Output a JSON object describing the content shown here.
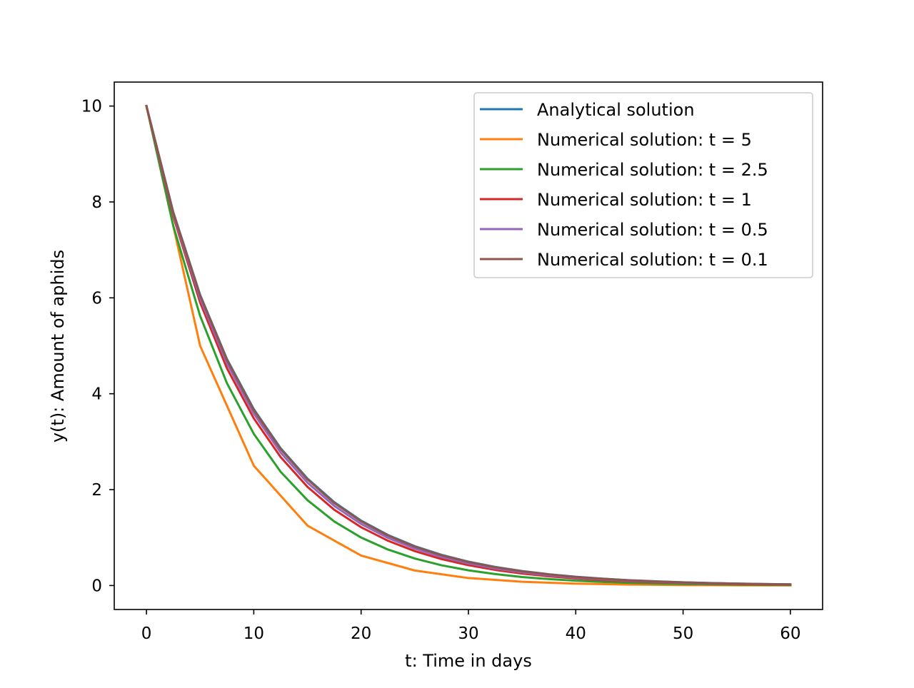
{
  "chart_data": {
    "type": "line",
    "title": "",
    "xlabel": "t: Time in days",
    "ylabel": "y(t): Amount of aphids",
    "xlim": [
      -3,
      63
    ],
    "ylim": [
      -0.5,
      10.5
    ],
    "xticks": [
      0,
      10,
      20,
      30,
      40,
      50,
      60
    ],
    "yticks": [
      0,
      2,
      4,
      6,
      8,
      10
    ],
    "grid": false,
    "legend_position": "top-right",
    "series": [
      {
        "name": "Analytical solution",
        "color": "#1f77b4",
        "x": [
          0,
          2.5,
          5,
          7.5,
          10,
          12.5,
          15,
          17.5,
          20,
          22.5,
          25,
          27.5,
          30,
          32.5,
          35,
          37.5,
          40,
          42.5,
          45,
          47.5,
          50,
          52.5,
          55,
          57.5,
          60
        ],
        "y": [
          10,
          7.788,
          6.065,
          4.724,
          3.679,
          2.865,
          2.231,
          1.738,
          1.353,
          1.054,
          0.821,
          0.639,
          0.498,
          0.388,
          0.302,
          0.235,
          0.183,
          0.143,
          0.111,
          0.087,
          0.067,
          0.052,
          0.041,
          0.032,
          0.025
        ]
      },
      {
        "name": "Numerical solution: t = 5",
        "color": "#ff7f0e",
        "x": [
          0,
          5,
          10,
          15,
          20,
          25,
          30,
          35,
          40,
          45,
          50,
          55,
          60
        ],
        "y": [
          10,
          5,
          2.5,
          1.25,
          0.625,
          0.313,
          0.156,
          0.078,
          0.039,
          0.02,
          0.01,
          0.005,
          0.002
        ]
      },
      {
        "name": "Numerical solution: t = 2.5",
        "color": "#2ca02c",
        "x": [
          0,
          2.5,
          5,
          7.5,
          10,
          12.5,
          15,
          17.5,
          20,
          22.5,
          25,
          27.5,
          30,
          32.5,
          35,
          37.5,
          40,
          42.5,
          45,
          47.5,
          50,
          52.5,
          55,
          57.5,
          60
        ],
        "y": [
          10,
          7.5,
          5.625,
          4.219,
          3.164,
          2.373,
          1.78,
          1.335,
          1.001,
          0.751,
          0.563,
          0.422,
          0.317,
          0.238,
          0.178,
          0.134,
          0.1,
          0.075,
          0.056,
          0.042,
          0.032,
          0.024,
          0.018,
          0.013,
          0.01
        ]
      },
      {
        "name": "Numerical solution: t = 1",
        "color": "#d62728",
        "x": [
          0,
          2.5,
          5,
          7.5,
          10,
          12.5,
          15,
          17.5,
          20,
          22.5,
          25,
          27.5,
          30,
          32.5,
          35,
          37.5,
          40,
          42.5,
          45,
          47.5,
          50,
          52.5,
          55,
          57.5,
          60
        ],
        "y": [
          10,
          7.7,
          5.904,
          4.53,
          3.487,
          2.68,
          2.059,
          1.58,
          1.216,
          0.934,
          0.718,
          0.551,
          0.424,
          0.325,
          0.25,
          0.192,
          0.148,
          0.113,
          0.087,
          0.067,
          0.052,
          0.04,
          0.03,
          0.023,
          0.018
        ]
      },
      {
        "name": "Numerical solution: t = 0.5",
        "color": "#9467bd",
        "x": [
          0,
          2.5,
          5,
          7.5,
          10,
          12.5,
          15,
          17.5,
          20,
          22.5,
          25,
          27.5,
          30,
          32.5,
          35,
          37.5,
          40,
          42.5,
          45,
          47.5,
          50,
          52.5,
          55,
          57.5,
          60
        ],
        "y": [
          10,
          7.738,
          5.987,
          4.633,
          3.585,
          2.774,
          2.146,
          1.661,
          1.285,
          0.994,
          0.769,
          0.595,
          0.461,
          0.356,
          0.276,
          0.213,
          0.165,
          0.128,
          0.099,
          0.077,
          0.059,
          0.046,
          0.036,
          0.028,
          0.021
        ]
      },
      {
        "name": "Numerical solution: t = 0.1",
        "color": "#8c564b",
        "x": [
          0,
          2.5,
          5,
          7.5,
          10,
          12.5,
          15,
          17.5,
          20,
          22.5,
          25,
          27.5,
          30,
          32.5,
          35,
          37.5,
          40,
          42.5,
          45,
          47.5,
          50,
          52.5,
          55,
          57.5,
          60
        ],
        "y": [
          10,
          7.778,
          6.05,
          4.705,
          3.66,
          2.847,
          2.215,
          1.722,
          1.34,
          1.042,
          0.81,
          0.63,
          0.49,
          0.381,
          0.297,
          0.231,
          0.179,
          0.14,
          0.109,
          0.085,
          0.066,
          0.051,
          0.04,
          0.031,
          0.024
        ]
      }
    ]
  }
}
